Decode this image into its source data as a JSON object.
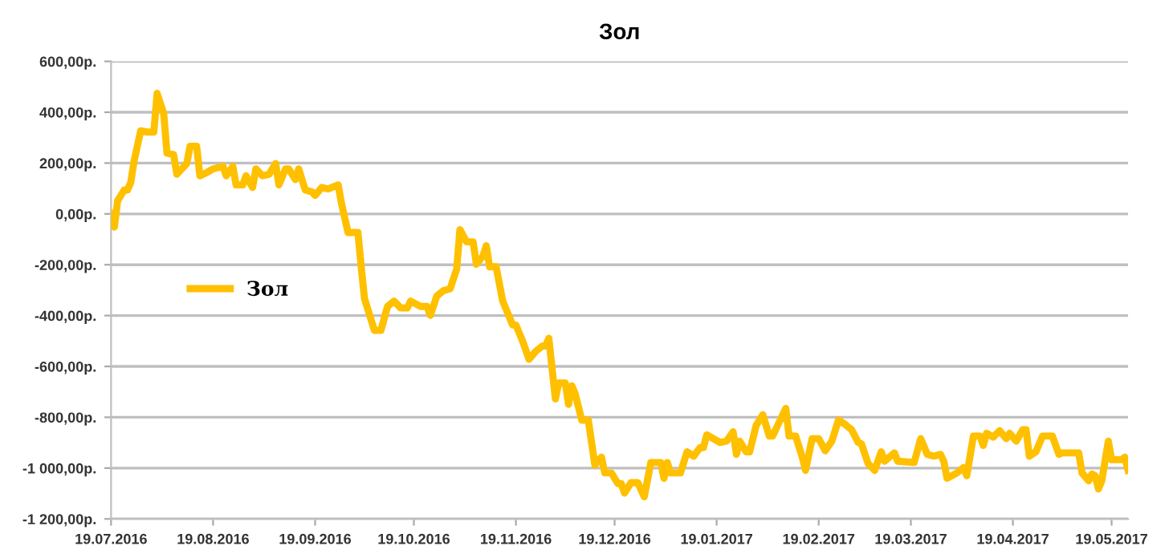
{
  "chart_data": {
    "type": "line",
    "title": "Зол",
    "x": [
      "2016-07-19",
      "2016-07-20",
      "2016-07-21",
      "2016-07-23",
      "2016-07-24",
      "2016-07-25",
      "2016-07-26",
      "2016-07-28",
      "2016-07-30",
      "2016-08-01",
      "2016-08-02",
      "2016-08-04",
      "2016-08-05",
      "2016-08-07",
      "2016-08-08",
      "2016-08-11",
      "2016-08-12",
      "2016-08-14",
      "2016-08-15",
      "2016-08-17",
      "2016-08-19",
      "2016-08-22",
      "2016-08-23",
      "2016-08-25",
      "2016-08-26",
      "2016-08-28",
      "2016-08-29",
      "2016-08-31",
      "2016-09-01",
      "2016-09-03",
      "2016-09-05",
      "2016-09-07",
      "2016-09-08",
      "2016-09-10",
      "2016-09-11",
      "2016-09-13",
      "2016-09-14",
      "2016-09-16",
      "2016-09-18",
      "2016-09-19",
      "2016-09-21",
      "2016-09-23",
      "2016-09-26",
      "2016-09-27",
      "2016-09-29",
      "2016-10-02",
      "2016-10-03",
      "2016-10-04",
      "2016-10-07",
      "2016-10-09",
      "2016-10-11",
      "2016-10-13",
      "2016-10-15",
      "2016-10-17",
      "2016-10-18",
      "2016-10-21",
      "2016-10-23",
      "2016-10-24",
      "2016-10-26",
      "2016-10-28",
      "2016-10-30",
      "2016-11-01",
      "2016-11-02",
      "2016-11-04",
      "2016-11-06",
      "2016-11-07",
      "2016-11-09",
      "2016-11-10",
      "2016-11-11",
      "2016-11-13",
      "2016-11-15",
      "2016-11-16",
      "2016-11-18",
      "2016-11-19",
      "2016-11-21",
      "2016-11-23",
      "2016-11-25",
      "2016-11-27",
      "2016-11-28",
      "2016-11-29",
      "2016-12-01",
      "2016-12-02",
      "2016-12-04",
      "2016-12-05",
      "2016-12-06",
      "2016-12-07",
      "2016-12-09",
      "2016-12-11",
      "2016-12-13",
      "2016-12-15",
      "2016-12-16",
      "2016-12-18",
      "2016-12-20",
      "2016-12-21",
      "2016-12-22",
      "2016-12-24",
      "2016-12-26",
      "2016-12-28",
      "2016-12-30",
      "2017-01-02",
      "2017-01-03",
      "2017-01-04",
      "2017-01-05",
      "2017-01-08",
      "2017-01-10",
      "2017-01-12",
      "2017-01-14",
      "2017-01-15",
      "2017-01-16",
      "2017-01-20",
      "2017-01-22",
      "2017-01-24",
      "2017-01-25",
      "2017-01-26",
      "2017-01-28",
      "2017-01-29",
      "2017-01-31",
      "2017-02-02",
      "2017-02-04",
      "2017-02-05",
      "2017-02-09",
      "2017-02-10",
      "2017-02-12",
      "2017-02-14",
      "2017-02-15",
      "2017-02-17",
      "2017-02-19",
      "2017-02-21",
      "2017-02-23",
      "2017-02-25",
      "2017-02-27",
      "2017-03-01",
      "2017-03-03",
      "2017-03-04",
      "2017-03-06",
      "2017-03-08",
      "2017-03-10",
      "2017-03-11",
      "2017-03-14",
      "2017-03-15",
      "2017-03-20",
      "2017-03-22",
      "2017-03-24",
      "2017-03-26",
      "2017-03-28",
      "2017-03-29",
      "2017-03-30",
      "2017-04-02",
      "2017-04-04",
      "2017-04-05",
      "2017-04-07",
      "2017-04-09",
      "2017-04-10",
      "2017-04-11",
      "2017-04-13",
      "2017-04-15",
      "2017-04-17",
      "2017-04-18",
      "2017-04-20",
      "2017-04-22",
      "2017-04-23",
      "2017-04-24",
      "2017-04-26",
      "2017-04-28",
      "2017-05-01",
      "2017-05-03",
      "2017-05-04",
      "2017-05-09",
      "2017-05-10",
      "2017-05-12",
      "2017-05-13",
      "2017-05-14",
      "2017-05-15",
      "2017-05-16",
      "2017-05-18",
      "2017-05-19",
      "2017-05-22",
      "2017-05-23",
      "2017-05-24"
    ],
    "series": [
      {
        "name": "Зол",
        "color": "#ffc000",
        "values": [
          0,
          -52,
          52,
          94,
          94,
          125,
          208,
          327,
          322,
          322,
          474,
          395,
          239,
          233,
          156,
          198,
          266,
          266,
          150,
          162,
          177,
          187,
          150,
          187,
          114,
          114,
          150,
          104,
          177,
          150,
          156,
          198,
          114,
          177,
          177,
          135,
          177,
          94,
          87,
          73,
          104,
          98,
          114,
          42,
          -73,
          -73,
          -208,
          -333,
          -458,
          -458,
          -364,
          -343,
          -370,
          -370,
          -343,
          -364,
          -364,
          -399,
          -322,
          -302,
          -295,
          -218,
          -62,
          -110,
          -110,
          -198,
          -166,
          -125,
          -208,
          -208,
          -343,
          -374,
          -437,
          -437,
          -499,
          -572,
          -541,
          -520,
          -520,
          -489,
          -728,
          -665,
          -665,
          -749,
          -676,
          -707,
          -811,
          -811,
          -988,
          -957,
          -1019,
          -1019,
          -1061,
          -1061,
          -1098,
          -1057,
          -1057,
          -1113,
          -978,
          -978,
          -1040,
          -978,
          -1019,
          -1019,
          -936,
          -953,
          -919,
          -919,
          -869,
          -899,
          -894,
          -857,
          -946,
          -894,
          -936,
          -936,
          -832,
          -790,
          -874,
          -874,
          -765,
          -874,
          -874,
          -957,
          -1009,
          -884,
          -884,
          -932,
          -894,
          -811,
          -828,
          -849,
          -899,
          -905,
          -982,
          -1009,
          -936,
          -973,
          -940,
          -973,
          -978,
          -884,
          -946,
          -953,
          -946,
          -973,
          -1040,
          -1019,
          -998,
          -1030,
          -874,
          -874,
          -911,
          -863,
          -878,
          -853,
          -884,
          -863,
          -894,
          -849,
          -849,
          -953,
          -936,
          -874,
          -874,
          -946,
          -940,
          -940,
          -1019,
          -1050,
          -1023,
          -1030,
          -1082,
          -1050,
          -894,
          -967,
          -967,
          -957,
          -1009
        ]
      }
    ],
    "xlim": [
      "2016-07-19",
      "2017-05-24"
    ],
    "xticks": [
      {
        "value": "2016-07-19",
        "label": "19.07.2016"
      },
      {
        "value": "2016-08-19",
        "label": "19.08.2016"
      },
      {
        "value": "2016-09-19",
        "label": "19.09.2016"
      },
      {
        "value": "2016-10-19",
        "label": "19.10.2016"
      },
      {
        "value": "2016-11-19",
        "label": "19.11.2016"
      },
      {
        "value": "2016-12-19",
        "label": "19.12.2016"
      },
      {
        "value": "2017-01-19",
        "label": "19.01.2017"
      },
      {
        "value": "2017-02-19",
        "label": "19.02.2017"
      },
      {
        "value": "2017-03-19",
        "label": "19.03.2017"
      },
      {
        "value": "2017-04-19",
        "label": "19.04.2017"
      },
      {
        "value": "2017-05-19",
        "label": "19.05.2017"
      }
    ],
    "ylim": [
      -1200,
      600
    ],
    "yticks": [
      {
        "value": -1200,
        "label": "-1 200,00р."
      },
      {
        "value": -1000,
        "label": "-1 000,00р."
      },
      {
        "value": -800,
        "label": "-800,00р."
      },
      {
        "value": -600,
        "label": "-600,00р."
      },
      {
        "value": -400,
        "label": "-400,00р."
      },
      {
        "value": -200,
        "label": "-200,00р."
      },
      {
        "value": 0,
        "label": "0,00р."
      },
      {
        "value": 200,
        "label": "200,00р."
      },
      {
        "value": 400,
        "label": "400,00р."
      },
      {
        "value": 600,
        "label": "600,00р."
      }
    ],
    "grid": "y",
    "legend": "center left",
    "line_style": "solid",
    "marker": "none"
  }
}
